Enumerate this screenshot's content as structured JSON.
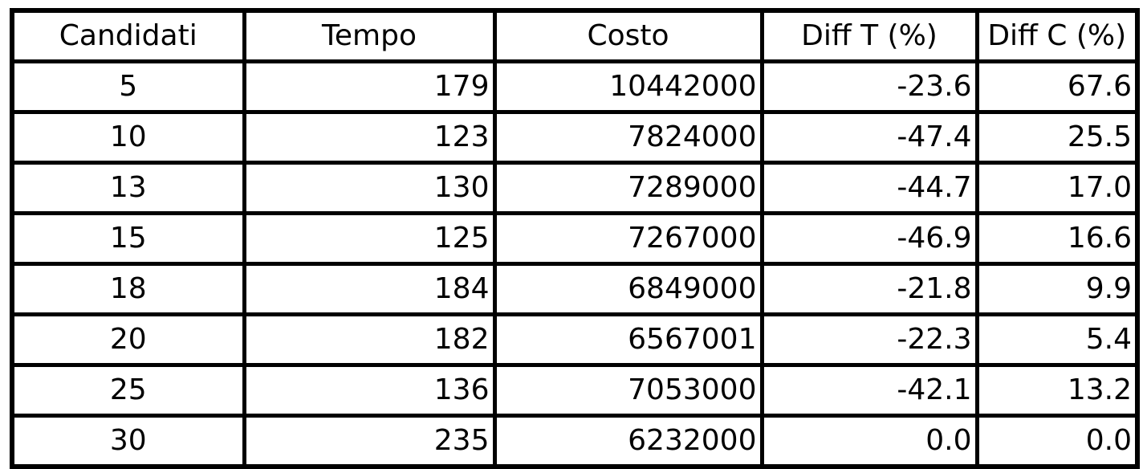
{
  "table": {
    "headers": [
      "Candidati",
      "Tempo",
      "Costo",
      "Diff T (%)",
      "Diff C (%)"
    ],
    "rows": [
      [
        "5",
        "179",
        "10442000",
        "-23.6",
        "67.6"
      ],
      [
        "10",
        "123",
        "7824000",
        "-47.4",
        "25.5"
      ],
      [
        "13",
        "130",
        "7289000",
        "-44.7",
        "17.0"
      ],
      [
        "15",
        "125",
        "7267000",
        "-46.9",
        "16.6"
      ],
      [
        "18",
        "184",
        "6849000",
        "-21.8",
        "9.9"
      ],
      [
        "20",
        "182",
        "6567001",
        "-22.3",
        "5.4"
      ],
      [
        "25",
        "136",
        "7053000",
        "-42.1",
        "13.2"
      ],
      [
        "30",
        "235",
        "6232000",
        "0.0",
        "0.0"
      ]
    ]
  }
}
